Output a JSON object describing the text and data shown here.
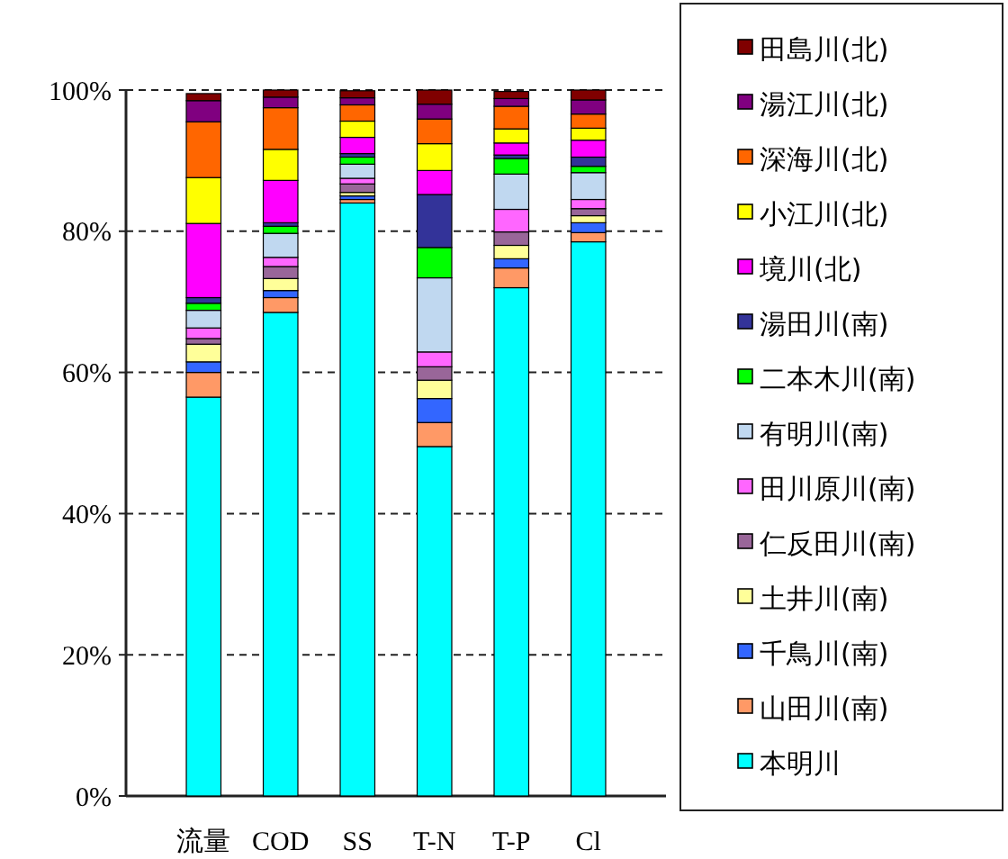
{
  "chart_data": {
    "type": "bar",
    "stacked": true,
    "categories": [
      "流量",
      "COD",
      "SS",
      "T-N",
      "T-P",
      "Cl"
    ],
    "ylim": [
      0,
      100
    ],
    "yticks": [
      {
        "value": 0,
        "label": "0%"
      },
      {
        "value": 20,
        "label": "20%"
      },
      {
        "value": 40,
        "label": "40%"
      },
      {
        "value": 60,
        "label": "60%"
      },
      {
        "value": 80,
        "label": "80%"
      },
      {
        "value": 100,
        "label": "100%"
      }
    ],
    "grid": "y",
    "legend": "right",
    "series": [
      {
        "name": "本明川",
        "color": "#00ffff",
        "values": [
          56.5,
          68.5,
          84,
          49.5,
          72,
          78.5
        ]
      },
      {
        "name": "山田川(南)",
        "color": "#ff9966",
        "values": [
          3.5,
          2.1,
          0.5,
          3.4,
          2.8,
          1.3
        ]
      },
      {
        "name": "千鳥川(南)",
        "color": "#3366ff",
        "values": [
          1.5,
          1,
          0.5,
          3.4,
          1.3,
          1.4
        ]
      },
      {
        "name": "土井川(南)",
        "color": "#ffff99",
        "values": [
          2.5,
          1.7,
          0.5,
          2.6,
          1.9,
          1
        ]
      },
      {
        "name": "仁反田川(南)",
        "color": "#996699",
        "values": [
          0.8,
          1.7,
          1.2,
          1.9,
          1.9,
          1
        ]
      },
      {
        "name": "田川原川(南)",
        "color": "#ff66ff",
        "values": [
          1.5,
          1.3,
          0.8,
          2.1,
          3.2,
          1.3
        ]
      },
      {
        "name": "有明川(南)",
        "color": "#c0d8f0",
        "values": [
          2.5,
          3.4,
          2,
          10.5,
          5,
          3.8
        ]
      },
      {
        "name": "二本木川(南)",
        "color": "#00ff00",
        "values": [
          1,
          1,
          1,
          4.3,
          2.2,
          0.9
        ]
      },
      {
        "name": "湯田川(南)",
        "color": "#333399",
        "values": [
          0.8,
          0.5,
          0.5,
          7.5,
          0.5,
          1.3
        ]
      },
      {
        "name": "境川(北)",
        "color": "#ff00ff",
        "values": [
          10.5,
          6,
          2.3,
          3.4,
          1.7,
          2.4
        ]
      },
      {
        "name": "小江川(北)",
        "color": "#ffff00",
        "values": [
          6.5,
          4.4,
          2.3,
          3.8,
          2,
          1.7
        ]
      },
      {
        "name": "深海川(北)",
        "color": "#ff6600",
        "values": [
          7.9,
          5.9,
          2.3,
          3.5,
          3.2,
          2
        ]
      },
      {
        "name": "湯江川(北)",
        "color": "#800080",
        "values": [
          3,
          1.5,
          1,
          2.1,
          1.1,
          2
        ]
      },
      {
        "name": "田島川(北)",
        "color": "#800000",
        "values": [
          1,
          1,
          1,
          2,
          1,
          1.4
        ]
      }
    ]
  }
}
